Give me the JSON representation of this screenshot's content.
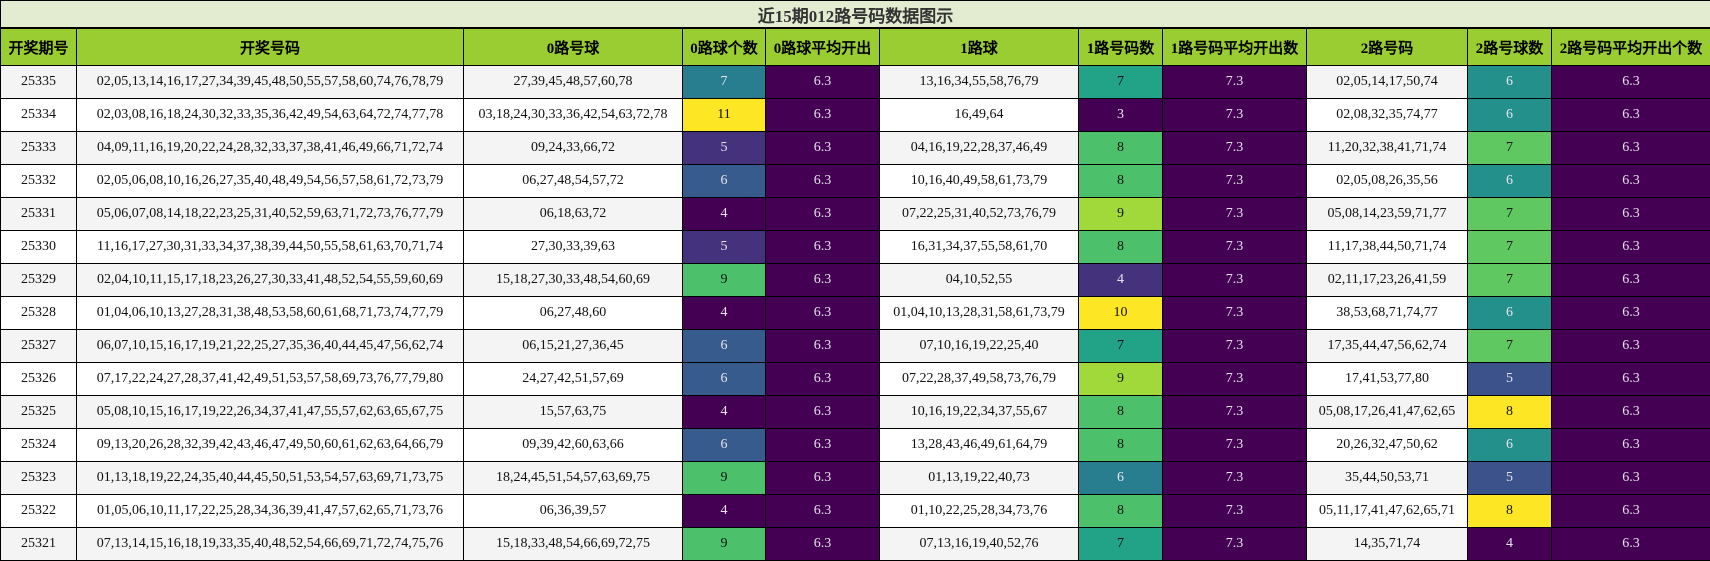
{
  "title": "近15期012路号码数据图示",
  "headers": [
    "开奖期号",
    "开奖号码",
    "0路号球",
    "0路球个数",
    "0路球平均开出",
    "1路球",
    "1路号码数",
    "1路号码平均开出数",
    "2路号码",
    "2路号球数",
    "2路号码平均开出个数"
  ],
  "rows": [
    {
      "issue": "25335",
      "numbers": "02,05,13,14,16,17,27,34,39,45,48,50,55,57,58,60,74,76,78,79",
      "r0": "27,39,45,48,57,60,78",
      "c0": 7,
      "a0": "6.3",
      "r1": "13,16,34,55,58,76,79",
      "c1": 7,
      "a1": "7.3",
      "r2": "02,05,14,17,50,74",
      "c2": 6,
      "a2": "6.3"
    },
    {
      "issue": "25334",
      "numbers": "02,03,08,16,18,24,30,32,33,35,36,42,49,54,63,64,72,74,77,78",
      "r0": "03,18,24,30,33,36,42,54,63,72,78",
      "c0": 11,
      "a0": "6.3",
      "r1": "16,49,64",
      "c1": 3,
      "a1": "7.3",
      "r2": "02,08,32,35,74,77",
      "c2": 6,
      "a2": "6.3"
    },
    {
      "issue": "25333",
      "numbers": "04,09,11,16,19,20,22,24,28,32,33,37,38,41,46,49,66,71,72,74",
      "r0": "09,24,33,66,72",
      "c0": 5,
      "a0": "6.3",
      "r1": "04,16,19,22,28,37,46,49",
      "c1": 8,
      "a1": "7.3",
      "r2": "11,20,32,38,41,71,74",
      "c2": 7,
      "a2": "6.3"
    },
    {
      "issue": "25332",
      "numbers": "02,05,06,08,10,16,26,27,35,40,48,49,54,56,57,58,61,72,73,79",
      "r0": "06,27,48,54,57,72",
      "c0": 6,
      "a0": "6.3",
      "r1": "10,16,40,49,58,61,73,79",
      "c1": 8,
      "a1": "7.3",
      "r2": "02,05,08,26,35,56",
      "c2": 6,
      "a2": "6.3"
    },
    {
      "issue": "25331",
      "numbers": "05,06,07,08,14,18,22,23,25,31,40,52,59,63,71,72,73,76,77,79",
      "r0": "06,18,63,72",
      "c0": 4,
      "a0": "6.3",
      "r1": "07,22,25,31,40,52,73,76,79",
      "c1": 9,
      "a1": "7.3",
      "r2": "05,08,14,23,59,71,77",
      "c2": 7,
      "a2": "6.3"
    },
    {
      "issue": "25330",
      "numbers": "11,16,17,27,30,31,33,34,37,38,39,44,50,55,58,61,63,70,71,74",
      "r0": "27,30,33,39,63",
      "c0": 5,
      "a0": "6.3",
      "r1": "16,31,34,37,55,58,61,70",
      "c1": 8,
      "a1": "7.3",
      "r2": "11,17,38,44,50,71,74",
      "c2": 7,
      "a2": "6.3"
    },
    {
      "issue": "25329",
      "numbers": "02,04,10,11,15,17,18,23,26,27,30,33,41,48,52,54,55,59,60,69",
      "r0": "15,18,27,30,33,48,54,60,69",
      "c0": 9,
      "a0": "6.3",
      "r1": "04,10,52,55",
      "c1": 4,
      "a1": "7.3",
      "r2": "02,11,17,23,26,41,59",
      "c2": 7,
      "a2": "6.3"
    },
    {
      "issue": "25328",
      "numbers": "01,04,06,10,13,27,28,31,38,48,53,58,60,61,68,71,73,74,77,79",
      "r0": "06,27,48,60",
      "c0": 4,
      "a0": "6.3",
      "r1": "01,04,10,13,28,31,58,61,73,79",
      "c1": 10,
      "a1": "7.3",
      "r2": "38,53,68,71,74,77",
      "c2": 6,
      "a2": "6.3"
    },
    {
      "issue": "25327",
      "numbers": "06,07,10,15,16,17,19,21,22,25,27,35,36,40,44,45,47,56,62,74",
      "r0": "06,15,21,27,36,45",
      "c0": 6,
      "a0": "6.3",
      "r1": "07,10,16,19,22,25,40",
      "c1": 7,
      "a1": "7.3",
      "r2": "17,35,44,47,56,62,74",
      "c2": 7,
      "a2": "6.3"
    },
    {
      "issue": "25326",
      "numbers": "07,17,22,24,27,28,37,41,42,49,51,53,57,58,69,73,76,77,79,80",
      "r0": "24,27,42,51,57,69",
      "c0": 6,
      "a0": "6.3",
      "r1": "07,22,28,37,49,58,73,76,79",
      "c1": 9,
      "a1": "7.3",
      "r2": "17,41,53,77,80",
      "c2": 5,
      "a2": "6.3"
    },
    {
      "issue": "25325",
      "numbers": "05,08,10,15,16,17,19,22,26,34,37,41,47,55,57,62,63,65,67,75",
      "r0": "15,57,63,75",
      "c0": 4,
      "a0": "6.3",
      "r1": "10,16,19,22,34,37,55,67",
      "c1": 8,
      "a1": "7.3",
      "r2": "05,08,17,26,41,47,62,65",
      "c2": 8,
      "a2": "6.3"
    },
    {
      "issue": "25324",
      "numbers": "09,13,20,26,28,32,39,42,43,46,47,49,50,60,61,62,63,64,66,79",
      "r0": "09,39,42,60,63,66",
      "c0": 6,
      "a0": "6.3",
      "r1": "13,28,43,46,49,61,64,79",
      "c1": 8,
      "a1": "7.3",
      "r2": "20,26,32,47,50,62",
      "c2": 6,
      "a2": "6.3"
    },
    {
      "issue": "25323",
      "numbers": "01,13,18,19,22,24,35,40,44,45,50,51,53,54,57,63,69,71,73,75",
      "r0": "18,24,45,51,54,57,63,69,75",
      "c0": 9,
      "a0": "6.3",
      "r1": "01,13,19,22,40,73",
      "c1": 6,
      "a1": "7.3",
      "r2": "35,44,50,53,71",
      "c2": 5,
      "a2": "6.3"
    },
    {
      "issue": "25322",
      "numbers": "01,05,06,10,11,17,22,25,28,34,36,39,41,47,57,62,65,71,73,76",
      "r0": "06,36,39,57",
      "c0": 4,
      "a0": "6.3",
      "r1": "01,10,22,25,28,34,73,76",
      "c1": 8,
      "a1": "7.3",
      "r2": "05,11,17,41,47,62,65,71",
      "c2": 8,
      "a2": "6.3"
    },
    {
      "issue": "25321",
      "numbers": "07,13,14,15,16,18,19,33,35,40,48,52,54,66,69,71,72,74,75,76",
      "r0": "15,18,33,48,54,66,69,72,75",
      "c0": 9,
      "a0": "6.3",
      "r1": "07,13,16,19,40,52,76",
      "c1": 7,
      "a1": "7.3",
      "r2": "14,35,71,74",
      "c2": 4,
      "a2": "6.3"
    }
  ]
}
